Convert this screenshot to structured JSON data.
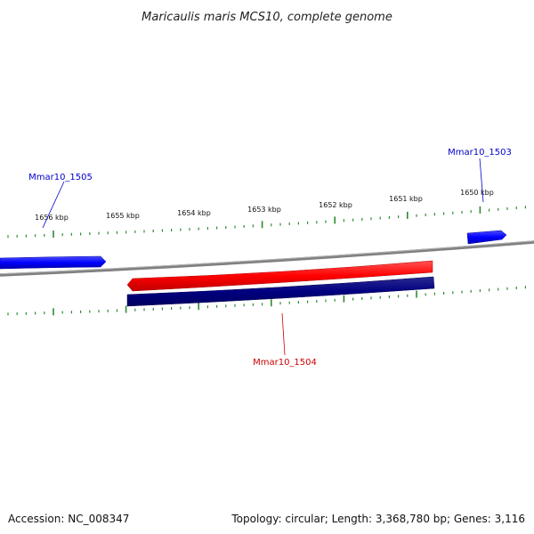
{
  "title": "Maricaulis maris MCS10, complete genome",
  "ruler": {
    "labels": [
      "1650 kbp",
      "1651 kbp",
      "1652 kbp",
      "1653 kbp",
      "1654 kbp",
      "1655 kbp",
      "1656 kbp"
    ]
  },
  "genes": [
    {
      "id": "Mmar10_1503",
      "color": "#0000cc"
    },
    {
      "id": "Mmar10_1504",
      "color": "#cc0000"
    },
    {
      "id": "Mmar10_1505",
      "color": "#0000cc"
    }
  ],
  "colors": {
    "forward_cds": "#0000ff",
    "reverse_cds": "#ff0000",
    "gene_track": "#000080",
    "backbone": "#808080",
    "ticks": "#2e8b2e"
  },
  "footer": {
    "accession": "Accession: NC_008347",
    "summary": "Topology: circular; Length: 3,368,780 bp; Genes: 3,116"
  }
}
